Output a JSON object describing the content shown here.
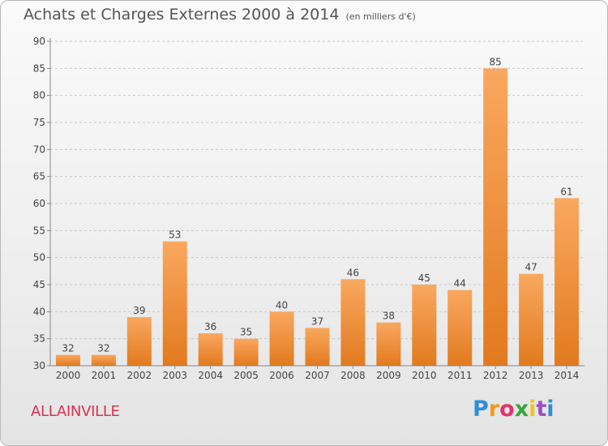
{
  "title": "Achats et Charges Externes 2000 à 2014",
  "unit": "(en milliers d'€)",
  "city": "ALLAINVILLE",
  "logo": [
    "P",
    "r",
    "o",
    "x",
    "i",
    "t",
    "i"
  ],
  "colors": {
    "bar_light": "#f9a860",
    "bar_dark": "#e27a1e",
    "axis": "#888888",
    "grid": "#c8c8c8",
    "city": "#d9334f"
  },
  "chart_data": {
    "type": "bar",
    "categories": [
      "2000",
      "2001",
      "2002",
      "2003",
      "2004",
      "2005",
      "2006",
      "2007",
      "2008",
      "2009",
      "2010",
      "2011",
      "2012",
      "2013",
      "2014"
    ],
    "values": [
      32,
      32,
      39,
      53,
      36,
      35,
      40,
      37,
      46,
      38,
      45,
      44,
      85,
      47,
      61
    ],
    "title": "Achats et Charges Externes 2000 à 2014",
    "ylim": [
      30,
      90
    ],
    "yticks": [
      30,
      35,
      40,
      45,
      50,
      55,
      60,
      65,
      70,
      75,
      80,
      85,
      90
    ],
    "grid": "horizontal dashed"
  }
}
